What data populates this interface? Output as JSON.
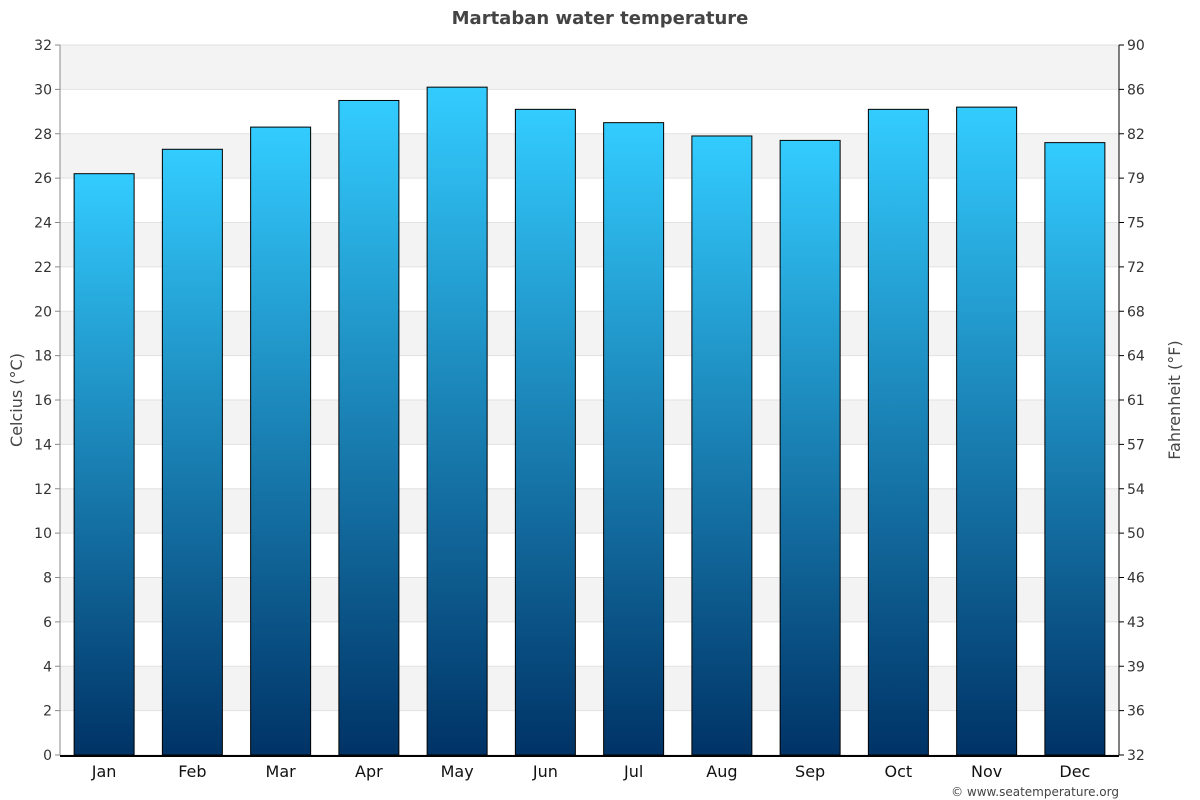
{
  "chart_data": {
    "type": "bar",
    "title": "Martaban water temperature",
    "ylabel": "Celcius (°C)",
    "ylabel_right": "Fahrenheit (°F)",
    "categories": [
      "Jan",
      "Feb",
      "Mar",
      "Apr",
      "May",
      "Jun",
      "Jul",
      "Aug",
      "Sep",
      "Oct",
      "Nov",
      "Dec"
    ],
    "values": [
      26.2,
      27.3,
      28.3,
      29.5,
      30.1,
      29.1,
      28.5,
      27.9,
      27.7,
      29.1,
      29.2,
      27.6
    ],
    "ylim": [
      0,
      32
    ],
    "yticks": [
      0,
      2,
      4,
      6,
      8,
      10,
      12,
      14,
      16,
      18,
      20,
      22,
      24,
      26,
      28,
      30,
      32
    ],
    "yticks_right": [
      32,
      36,
      39,
      43,
      46,
      50,
      54,
      57,
      61,
      64,
      68,
      72,
      75,
      79,
      82,
      86,
      90
    ],
    "grid": true,
    "colors": {
      "bar_top": "#33ccff",
      "bar_bottom": "#003366",
      "band": "#f3f3f3"
    }
  },
  "credit": "© www.seatemperature.org"
}
